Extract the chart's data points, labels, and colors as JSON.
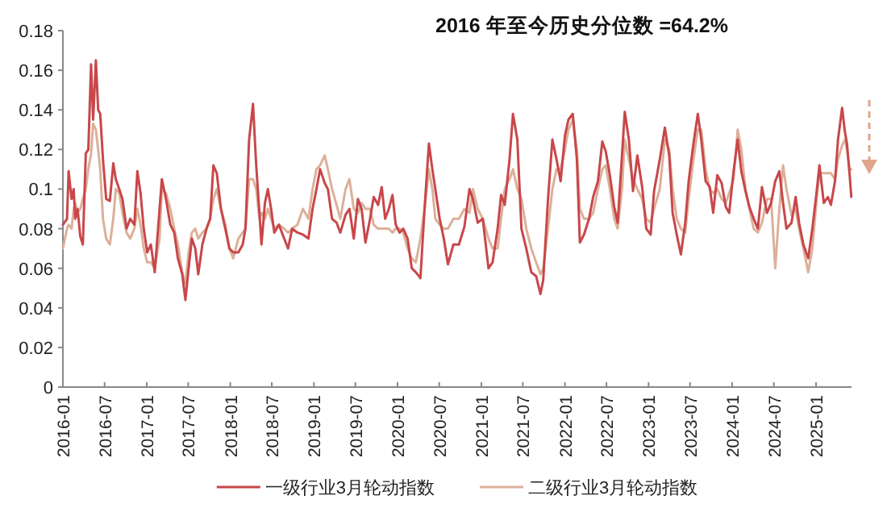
{
  "chart_data": {
    "type": "line",
    "title": "2016 年至今历史分位数 =64.2%",
    "x": [
      "2016-01-01",
      "2016-01-19",
      "2016-01-26",
      "2016-02-08",
      "2016-02-17",
      "2016-02-24",
      "2016-03-05",
      "2016-03-17",
      "2016-03-28",
      "2016-04-10",
      "2016-04-21",
      "2016-05-03",
      "2016-05-12",
      "2016-05-24",
      "2016-06-03",
      "2016-06-12",
      "2016-06-24",
      "2016-07-08",
      "2016-07-24",
      "2016-08-08",
      "2016-08-19",
      "2016-09-03",
      "2016-09-17",
      "2016-10-05",
      "2016-10-21",
      "2016-11-08",
      "2016-11-21",
      "2016-12-05",
      "2016-12-19",
      "2017-01-03",
      "2017-01-19",
      "2017-02-05",
      "2017-02-26",
      "2017-03-08",
      "2017-03-26",
      "2017-04-14",
      "2017-05-01",
      "2017-05-17",
      "2017-06-05",
      "2017-06-19",
      "2017-07-03",
      "2017-07-17",
      "2017-08-01",
      "2017-08-14",
      "2017-09-01",
      "2017-09-19",
      "2017-10-05",
      "2017-10-19",
      "2017-11-03",
      "2017-11-21",
      "2017-12-10",
      "2017-12-28",
      "2018-01-14",
      "2018-02-05",
      "2018-02-24",
      "2018-03-08",
      "2018-03-24",
      "2018-04-10",
      "2018-04-24",
      "2018-05-08",
      "2018-05-17",
      "2018-06-01",
      "2018-06-14",
      "2018-06-28",
      "2018-07-12",
      "2018-08-01",
      "2018-08-24",
      "2018-09-10",
      "2018-09-28",
      "2018-10-21",
      "2018-11-14",
      "2018-12-08",
      "2018-12-26",
      "2019-01-12",
      "2019-01-28",
      "2019-02-17",
      "2019-03-03",
      "2019-03-21",
      "2019-04-10",
      "2019-04-26",
      "2019-05-19",
      "2019-06-05",
      "2019-06-24",
      "2019-07-12",
      "2019-07-28",
      "2019-08-14",
      "2019-09-03",
      "2019-09-19",
      "2019-10-08",
      "2019-10-24",
      "2019-11-08",
      "2019-11-24",
      "2019-12-10",
      "2019-12-24",
      "2020-01-10",
      "2020-01-26",
      "2020-02-14",
      "2020-03-03",
      "2020-03-21",
      "2020-04-10",
      "2020-04-28",
      "2020-05-17",
      "2020-06-01",
      "2020-06-14",
      "2020-07-03",
      "2020-07-21",
      "2020-08-08",
      "2020-09-01",
      "2020-09-25",
      "2020-10-19",
      "2020-11-10",
      "2020-11-25",
      "2020-12-16",
      "2021-01-07",
      "2021-02-01",
      "2021-02-19",
      "2021-03-13",
      "2021-03-28",
      "2021-04-13",
      "2021-05-04",
      "2021-05-19",
      "2021-06-07",
      "2021-06-25",
      "2021-07-16",
      "2021-08-07",
      "2021-08-28",
      "2021-09-16",
      "2021-09-28",
      "2021-10-19",
      "2021-11-07",
      "2021-11-25",
      "2021-12-13",
      "2022-01-01",
      "2022-01-16",
      "2022-02-04",
      "2022-02-22",
      "2022-03-07",
      "2022-03-25",
      "2022-04-16",
      "2022-05-04",
      "2022-05-25",
      "2022-06-13",
      "2022-06-28",
      "2022-07-16",
      "2022-08-04",
      "2022-08-19",
      "2022-09-07",
      "2022-09-19",
      "2022-10-07",
      "2022-10-25",
      "2022-11-13",
      "2022-12-04",
      "2022-12-22",
      "2023-01-10",
      "2023-01-25",
      "2023-02-19",
      "2023-03-13",
      "2023-04-01",
      "2023-04-16",
      "2023-05-04",
      "2023-05-22",
      "2023-06-10",
      "2023-06-25",
      "2023-07-16",
      "2023-08-04",
      "2023-08-19",
      "2023-09-07",
      "2023-09-25",
      "2023-10-10",
      "2023-10-28",
      "2023-11-16",
      "2023-12-04",
      "2023-12-19",
      "2024-01-07",
      "2024-01-25",
      "2024-02-10",
      "2024-02-28",
      "2024-03-16",
      "2024-04-04",
      "2024-04-22",
      "2024-05-10",
      "2024-06-01",
      "2024-06-19",
      "2024-07-07",
      "2024-07-25",
      "2024-08-10",
      "2024-08-25",
      "2024-09-16",
      "2024-10-04",
      "2024-10-19",
      "2024-11-07",
      "2024-11-28",
      "2024-12-16",
      "2025-01-04",
      "2025-01-16",
      "2025-02-04",
      "2025-02-22",
      "2025-03-07",
      "2025-03-25",
      "2025-04-07",
      "2025-04-25",
      "2025-05-07",
      "2025-05-16",
      "2025-05-28",
      "2025-06-04"
    ],
    "xlim": [
      "2016-01-01",
      "2025-06-05"
    ],
    "xticks": [
      "2016-01",
      "2016-07",
      "2017-01",
      "2017-07",
      "2018-01",
      "2018-07",
      "2019-01",
      "2019-07",
      "2020-01",
      "2020-07",
      "2021-01",
      "2021-07",
      "2022-01",
      "2022-07",
      "2023-01",
      "2023-07",
      "2024-01",
      "2024-07",
      "2025-01"
    ],
    "ylim": [
      0,
      0.18
    ],
    "yticks": [
      0,
      0.02,
      0.04,
      0.06,
      0.08,
      0.1,
      0.12,
      0.14,
      0.16,
      0.18
    ],
    "legend": "bottom",
    "series": [
      {
        "name": "一级行业3月轮动指数",
        "color": "#c8474a",
        "values": [
          0.082,
          0.085,
          0.109,
          0.095,
          0.1,
          0.085,
          0.09,
          0.076,
          0.072,
          0.118,
          0.12,
          0.163,
          0.135,
          0.165,
          0.14,
          0.138,
          0.115,
          0.095,
          0.094,
          0.113,
          0.105,
          0.1,
          0.095,
          0.08,
          0.085,
          0.082,
          0.109,
          0.098,
          0.08,
          0.068,
          0.072,
          0.058,
          0.09,
          0.105,
          0.095,
          0.082,
          0.078,
          0.065,
          0.057,
          0.044,
          0.06,
          0.075,
          0.07,
          0.057,
          0.072,
          0.08,
          0.085,
          0.112,
          0.108,
          0.09,
          0.08,
          0.07,
          0.068,
          0.068,
          0.072,
          0.08,
          0.125,
          0.143,
          0.112,
          0.088,
          0.072,
          0.093,
          0.1,
          0.09,
          0.078,
          0.082,
          0.075,
          0.07,
          0.08,
          0.078,
          0.077,
          0.075,
          0.09,
          0.1,
          0.11,
          0.103,
          0.1,
          0.085,
          0.083,
          0.078,
          0.087,
          0.09,
          0.075,
          0.095,
          0.09,
          0.073,
          0.085,
          0.096,
          0.092,
          0.101,
          0.085,
          0.09,
          0.097,
          0.082,
          0.078,
          0.08,
          0.075,
          0.06,
          0.058,
          0.055,
          0.09,
          0.123,
          0.11,
          0.1,
          0.085,
          0.075,
          0.062,
          0.072,
          0.072,
          0.081,
          0.1,
          0.095,
          0.083,
          0.085,
          0.06,
          0.063,
          0.08,
          0.097,
          0.092,
          0.115,
          0.138,
          0.125,
          0.08,
          0.07,
          0.058,
          0.056,
          0.047,
          0.054,
          0.095,
          0.125,
          0.115,
          0.104,
          0.127,
          0.135,
          0.138,
          0.115,
          0.073,
          0.077,
          0.085,
          0.096,
          0.104,
          0.124,
          0.119,
          0.107,
          0.091,
          0.083,
          0.117,
          0.139,
          0.125,
          0.099,
          0.117,
          0.101,
          0.08,
          0.077,
          0.099,
          0.115,
          0.131,
          0.117,
          0.088,
          0.077,
          0.067,
          0.083,
          0.104,
          0.123,
          0.138,
          0.125,
          0.104,
          0.101,
          0.088,
          0.107,
          0.103,
          0.091,
          0.088,
          0.109,
          0.125,
          0.109,
          0.099,
          0.091,
          0.085,
          0.08,
          0.101,
          0.088,
          0.093,
          0.104,
          0.109,
          0.093,
          0.08,
          0.083,
          0.096,
          0.083,
          0.072,
          0.065,
          0.08,
          0.099,
          0.112,
          0.093,
          0.096,
          0.092,
          0.104,
          0.125,
          0.141,
          0.129,
          0.123,
          0.107,
          0.096
        ]
      },
      {
        "name": "二级行业3月轮动指数",
        "color": "#dcb09a",
        "values": [
          0.07,
          0.08,
          0.082,
          0.08,
          0.09,
          0.093,
          0.088,
          0.09,
          0.095,
          0.1,
          0.11,
          0.118,
          0.133,
          0.13,
          0.12,
          0.11,
          0.085,
          0.075,
          0.072,
          0.085,
          0.1,
          0.098,
          0.088,
          0.078,
          0.075,
          0.08,
          0.09,
          0.082,
          0.07,
          0.063,
          0.063,
          0.06,
          0.075,
          0.1,
          0.098,
          0.09,
          0.08,
          0.072,
          0.058,
          0.052,
          0.068,
          0.078,
          0.08,
          0.075,
          0.078,
          0.08,
          0.085,
          0.095,
          0.1,
          0.09,
          0.082,
          0.07,
          0.065,
          0.075,
          0.078,
          0.08,
          0.105,
          0.105,
          0.1,
          0.085,
          0.088,
          0.085,
          0.09,
          0.085,
          0.08,
          0.082,
          0.08,
          0.078,
          0.08,
          0.082,
          0.09,
          0.085,
          0.1,
          0.11,
          0.112,
          0.117,
          0.11,
          0.1,
          0.092,
          0.085,
          0.1,
          0.105,
          0.09,
          0.088,
          0.093,
          0.09,
          0.09,
          0.082,
          0.08,
          0.08,
          0.08,
          0.08,
          0.078,
          0.08,
          0.08,
          0.078,
          0.07,
          0.065,
          0.063,
          0.075,
          0.09,
          0.11,
          0.1,
          0.085,
          0.082,
          0.08,
          0.08,
          0.085,
          0.085,
          0.09,
          0.088,
          0.1,
          0.09,
          0.085,
          0.075,
          0.07,
          0.07,
          0.085,
          0.1,
          0.105,
          0.11,
          0.1,
          0.095,
          0.08,
          0.07,
          0.063,
          0.057,
          0.06,
          0.08,
          0.1,
          0.11,
          0.11,
          0.12,
          0.13,
          0.135,
          0.12,
          0.09,
          0.085,
          0.085,
          0.088,
          0.1,
          0.11,
          0.112,
          0.1,
          0.085,
          0.08,
          0.1,
          0.125,
          0.115,
          0.105,
          0.1,
          0.095,
          0.085,
          0.083,
          0.09,
          0.1,
          0.125,
          0.12,
          0.1,
          0.085,
          0.08,
          0.078,
          0.095,
          0.115,
          0.13,
          0.13,
          0.11,
          0.1,
          0.098,
          0.1,
          0.095,
          0.093,
          0.098,
          0.105,
          0.13,
          0.12,
          0.1,
          0.09,
          0.08,
          0.078,
          0.083,
          0.095,
          0.095,
          0.06,
          0.09,
          0.112,
          0.1,
          0.087,
          0.09,
          0.08,
          0.07,
          0.058,
          0.07,
          0.095,
          0.108,
          0.108,
          0.108,
          0.108,
          0.105,
          0.115,
          0.122,
          0.125,
          0.12,
          0.11,
          0.11
        ]
      }
    ]
  }
}
